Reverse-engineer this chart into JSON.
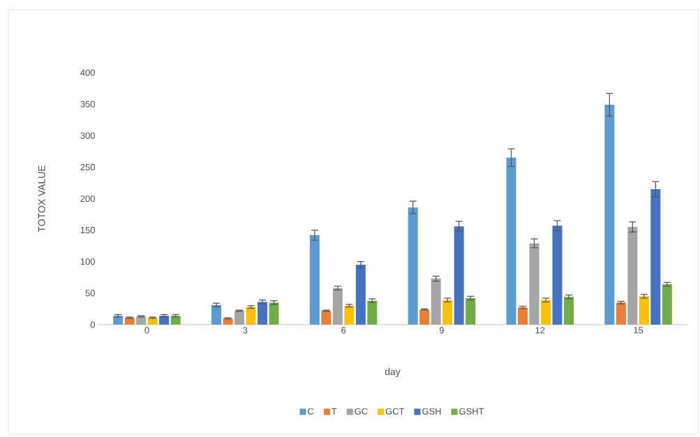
{
  "chart_data": {
    "type": "bar",
    "xlabel": "day",
    "ylabel": "TOTOX VALUE",
    "categories": [
      "0",
      "3",
      "6",
      "9",
      "12",
      "15"
    ],
    "series": [
      {
        "name": "C",
        "color": "#5b9bd5",
        "values": [
          14,
          31,
          142,
          186,
          265,
          349
        ],
        "errors": [
          2,
          3,
          8,
          10,
          14,
          18
        ]
      },
      {
        "name": "T",
        "color": "#ed7d31",
        "values": [
          11,
          10,
          22,
          24,
          27,
          35
        ],
        "errors": [
          1,
          1,
          1,
          1,
          2,
          2
        ]
      },
      {
        "name": "GC",
        "color": "#a5a5a5",
        "values": [
          13,
          22,
          58,
          73,
          129,
          155
        ],
        "errors": [
          1,
          1,
          3,
          4,
          7,
          8
        ]
      },
      {
        "name": "GCT",
        "color": "#ffc000",
        "values": [
          11,
          28,
          30,
          39,
          39,
          45
        ],
        "errors": [
          1,
          2,
          2,
          3,
          3,
          3
        ]
      },
      {
        "name": "GSH",
        "color": "#4472c4",
        "values": [
          14,
          36,
          95,
          156,
          157,
          215
        ],
        "errors": [
          2,
          3,
          5,
          8,
          8,
          12
        ]
      },
      {
        "name": "GSHT",
        "color": "#70ad47",
        "values": [
          14,
          35,
          38,
          42,
          44,
          64
        ],
        "errors": [
          2,
          3,
          3,
          3,
          3,
          3
        ]
      }
    ],
    "ylim": [
      0,
      400
    ],
    "yticks": [
      0,
      50,
      100,
      150,
      200,
      250,
      300,
      350,
      400
    ],
    "grid": false,
    "legend": "bottom"
  }
}
